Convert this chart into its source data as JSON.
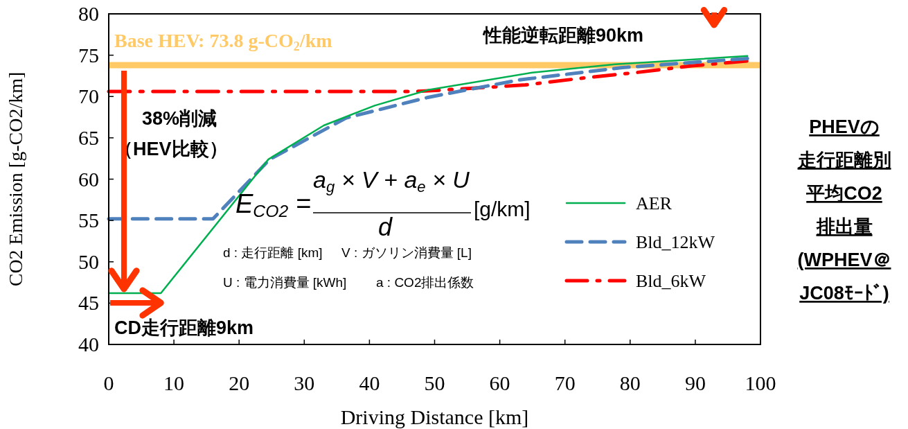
{
  "chart_data": {
    "type": "line",
    "xlabel": "Driving Distance [km]",
    "ylabel": "CO2 Emission  [g-CO2/km]",
    "xlim": [
      0,
      100
    ],
    "xticks": [
      0,
      10,
      20,
      30,
      40,
      50,
      60,
      70,
      80,
      90,
      100
    ],
    "ylim": [
      40,
      80
    ],
    "yticks": [
      40,
      45,
      50,
      55,
      60,
      65,
      70,
      75,
      80
    ],
    "grid": false,
    "legend": "right",
    "marker": "none",
    "series": [
      {
        "name": "AER",
        "color": "#00b050",
        "line_style": "solid",
        "x": [
          0,
          8,
          24.5,
          33,
          40.8,
          49,
          65,
          77.7,
          98
        ],
        "values": [
          46.2,
          46.2,
          62.4,
          66.5,
          68.9,
          70.8,
          72.9,
          73.9,
          74.9
        ]
      },
      {
        "name": "Bld_12kW",
        "color": "#4f81bd",
        "line_style": "dashed",
        "x": [
          0,
          16,
          24.7,
          36.4,
          49,
          62.9,
          78.8,
          98
        ],
        "values": [
          55.2,
          55.2,
          62.4,
          67.4,
          69.9,
          72.0,
          73.5,
          74.6
        ]
      },
      {
        "name": "Bld_6kW",
        "color": "#ff0000",
        "line_style": "dashdot",
        "x": [
          0,
          47,
          51.5,
          63.9,
          72.4,
          80.9,
          89.4,
          97.9
        ],
        "values": [
          70.6,
          70.6,
          70.8,
          71.4,
          72.2,
          72.9,
          73.7,
          74.3
        ]
      }
    ],
    "ref_lines": [
      {
        "axis": "y",
        "value": 73.8,
        "label": "Base HEV: 73.8 g-CO$_{2}$/km",
        "color": "#ffc966",
        "line_style": "solid"
      }
    ],
    "annotations": [
      "38%削減",
      "（HEV比較）",
      "CD走行距離9km",
      "性能逆転距離90km",
      "E$_{CO2}$ =",
      "a$_{g}$ × V + a$_{e}$ × U",
      "d",
      "[g/km]",
      "d : 走行距離 [km]",
      "V : ガソリン消費量 [L]",
      "U : 電力消費量 [kWh]",
      "a : CO2排出係数",
      "PHEVの",
      "走行距離別",
      "平均CO2",
      "排出量",
      "(WPHEV＠",
      "JC08ﾓｰﾄﾞ)"
    ]
  }
}
